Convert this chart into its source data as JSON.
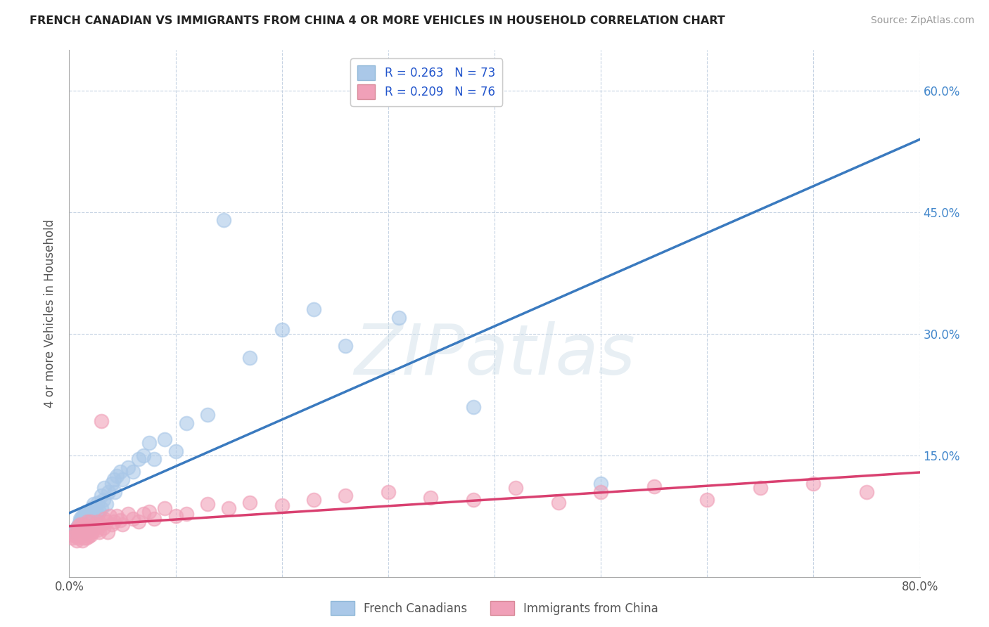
{
  "title": "FRENCH CANADIAN VS IMMIGRANTS FROM CHINA 4 OR MORE VEHICLES IN HOUSEHOLD CORRELATION CHART",
  "source": "Source: ZipAtlas.com",
  "ylabel": "4 or more Vehicles in Household",
  "x_min": 0.0,
  "x_max": 0.8,
  "y_min": 0.0,
  "y_max": 0.65,
  "x_ticks": [
    0.0,
    0.1,
    0.2,
    0.3,
    0.4,
    0.5,
    0.6,
    0.7,
    0.8
  ],
  "y_ticks": [
    0.0,
    0.15,
    0.3,
    0.45,
    0.6
  ],
  "legend1_label": "R = 0.263   N = 73",
  "legend2_label": "R = 0.209   N = 76",
  "legend_label_french": "French Canadians",
  "legend_label_china": "Immigrants from China",
  "blue_color": "#aac8e8",
  "pink_color": "#f0a0b8",
  "blue_line_color": "#3a7abf",
  "pink_line_color": "#d94070",
  "watermark": "ZIPatlas",
  "background_color": "#ffffff",
  "grid_color": "#c0cfe0",
  "right_tick_color": "#4488cc",
  "blue_scatter_x": [
    0.005,
    0.007,
    0.008,
    0.009,
    0.01,
    0.01,
    0.01,
    0.011,
    0.011,
    0.012,
    0.012,
    0.012,
    0.013,
    0.013,
    0.013,
    0.014,
    0.014,
    0.015,
    0.015,
    0.015,
    0.016,
    0.016,
    0.016,
    0.017,
    0.017,
    0.018,
    0.018,
    0.019,
    0.019,
    0.02,
    0.02,
    0.021,
    0.021,
    0.022,
    0.022,
    0.023,
    0.023,
    0.024,
    0.025,
    0.025,
    0.026,
    0.027,
    0.028,
    0.03,
    0.03,
    0.032,
    0.033,
    0.035,
    0.037,
    0.04,
    0.042,
    0.043,
    0.045,
    0.048,
    0.05,
    0.055,
    0.06,
    0.065,
    0.07,
    0.075,
    0.08,
    0.09,
    0.1,
    0.11,
    0.13,
    0.145,
    0.17,
    0.2,
    0.23,
    0.26,
    0.31,
    0.38,
    0.5
  ],
  "blue_scatter_y": [
    0.055,
    0.06,
    0.058,
    0.065,
    0.062,
    0.068,
    0.072,
    0.058,
    0.07,
    0.065,
    0.075,
    0.06,
    0.058,
    0.068,
    0.072,
    0.062,
    0.078,
    0.055,
    0.068,
    0.075,
    0.06,
    0.072,
    0.08,
    0.065,
    0.07,
    0.058,
    0.075,
    0.062,
    0.08,
    0.06,
    0.072,
    0.068,
    0.085,
    0.07,
    0.078,
    0.075,
    0.09,
    0.08,
    0.072,
    0.085,
    0.078,
    0.092,
    0.08,
    0.1,
    0.085,
    0.095,
    0.11,
    0.09,
    0.105,
    0.115,
    0.12,
    0.105,
    0.125,
    0.13,
    0.12,
    0.135,
    0.13,
    0.145,
    0.15,
    0.165,
    0.145,
    0.17,
    0.155,
    0.19,
    0.2,
    0.44,
    0.27,
    0.305,
    0.33,
    0.285,
    0.32,
    0.21,
    0.115
  ],
  "pink_scatter_x": [
    0.003,
    0.005,
    0.006,
    0.007,
    0.007,
    0.008,
    0.008,
    0.009,
    0.009,
    0.01,
    0.01,
    0.011,
    0.011,
    0.012,
    0.012,
    0.013,
    0.013,
    0.014,
    0.014,
    0.015,
    0.015,
    0.016,
    0.016,
    0.017,
    0.017,
    0.018,
    0.019,
    0.019,
    0.02,
    0.02,
    0.021,
    0.022,
    0.023,
    0.024,
    0.025,
    0.026,
    0.027,
    0.028,
    0.03,
    0.03,
    0.032,
    0.033,
    0.035,
    0.036,
    0.038,
    0.04,
    0.042,
    0.045,
    0.048,
    0.05,
    0.055,
    0.06,
    0.065,
    0.07,
    0.075,
    0.08,
    0.09,
    0.1,
    0.11,
    0.13,
    0.15,
    0.17,
    0.2,
    0.23,
    0.26,
    0.3,
    0.34,
    0.38,
    0.42,
    0.46,
    0.5,
    0.55,
    0.6,
    0.65,
    0.7,
    0.75
  ],
  "pink_scatter_y": [
    0.048,
    0.052,
    0.05,
    0.058,
    0.045,
    0.055,
    0.062,
    0.048,
    0.058,
    0.052,
    0.065,
    0.05,
    0.058,
    0.045,
    0.062,
    0.052,
    0.058,
    0.048,
    0.065,
    0.055,
    0.062,
    0.048,
    0.058,
    0.055,
    0.068,
    0.05,
    0.062,
    0.058,
    0.052,
    0.068,
    0.055,
    0.06,
    0.058,
    0.065,
    0.062,
    0.058,
    0.068,
    0.055,
    0.065,
    0.192,
    0.06,
    0.072,
    0.068,
    0.055,
    0.075,
    0.065,
    0.068,
    0.075,
    0.07,
    0.065,
    0.078,
    0.072,
    0.068,
    0.078,
    0.08,
    0.072,
    0.085,
    0.075,
    0.078,
    0.09,
    0.085,
    0.092,
    0.088,
    0.095,
    0.1,
    0.105,
    0.098,
    0.095,
    0.11,
    0.092,
    0.105,
    0.112,
    0.095,
    0.11,
    0.115,
    0.105
  ]
}
